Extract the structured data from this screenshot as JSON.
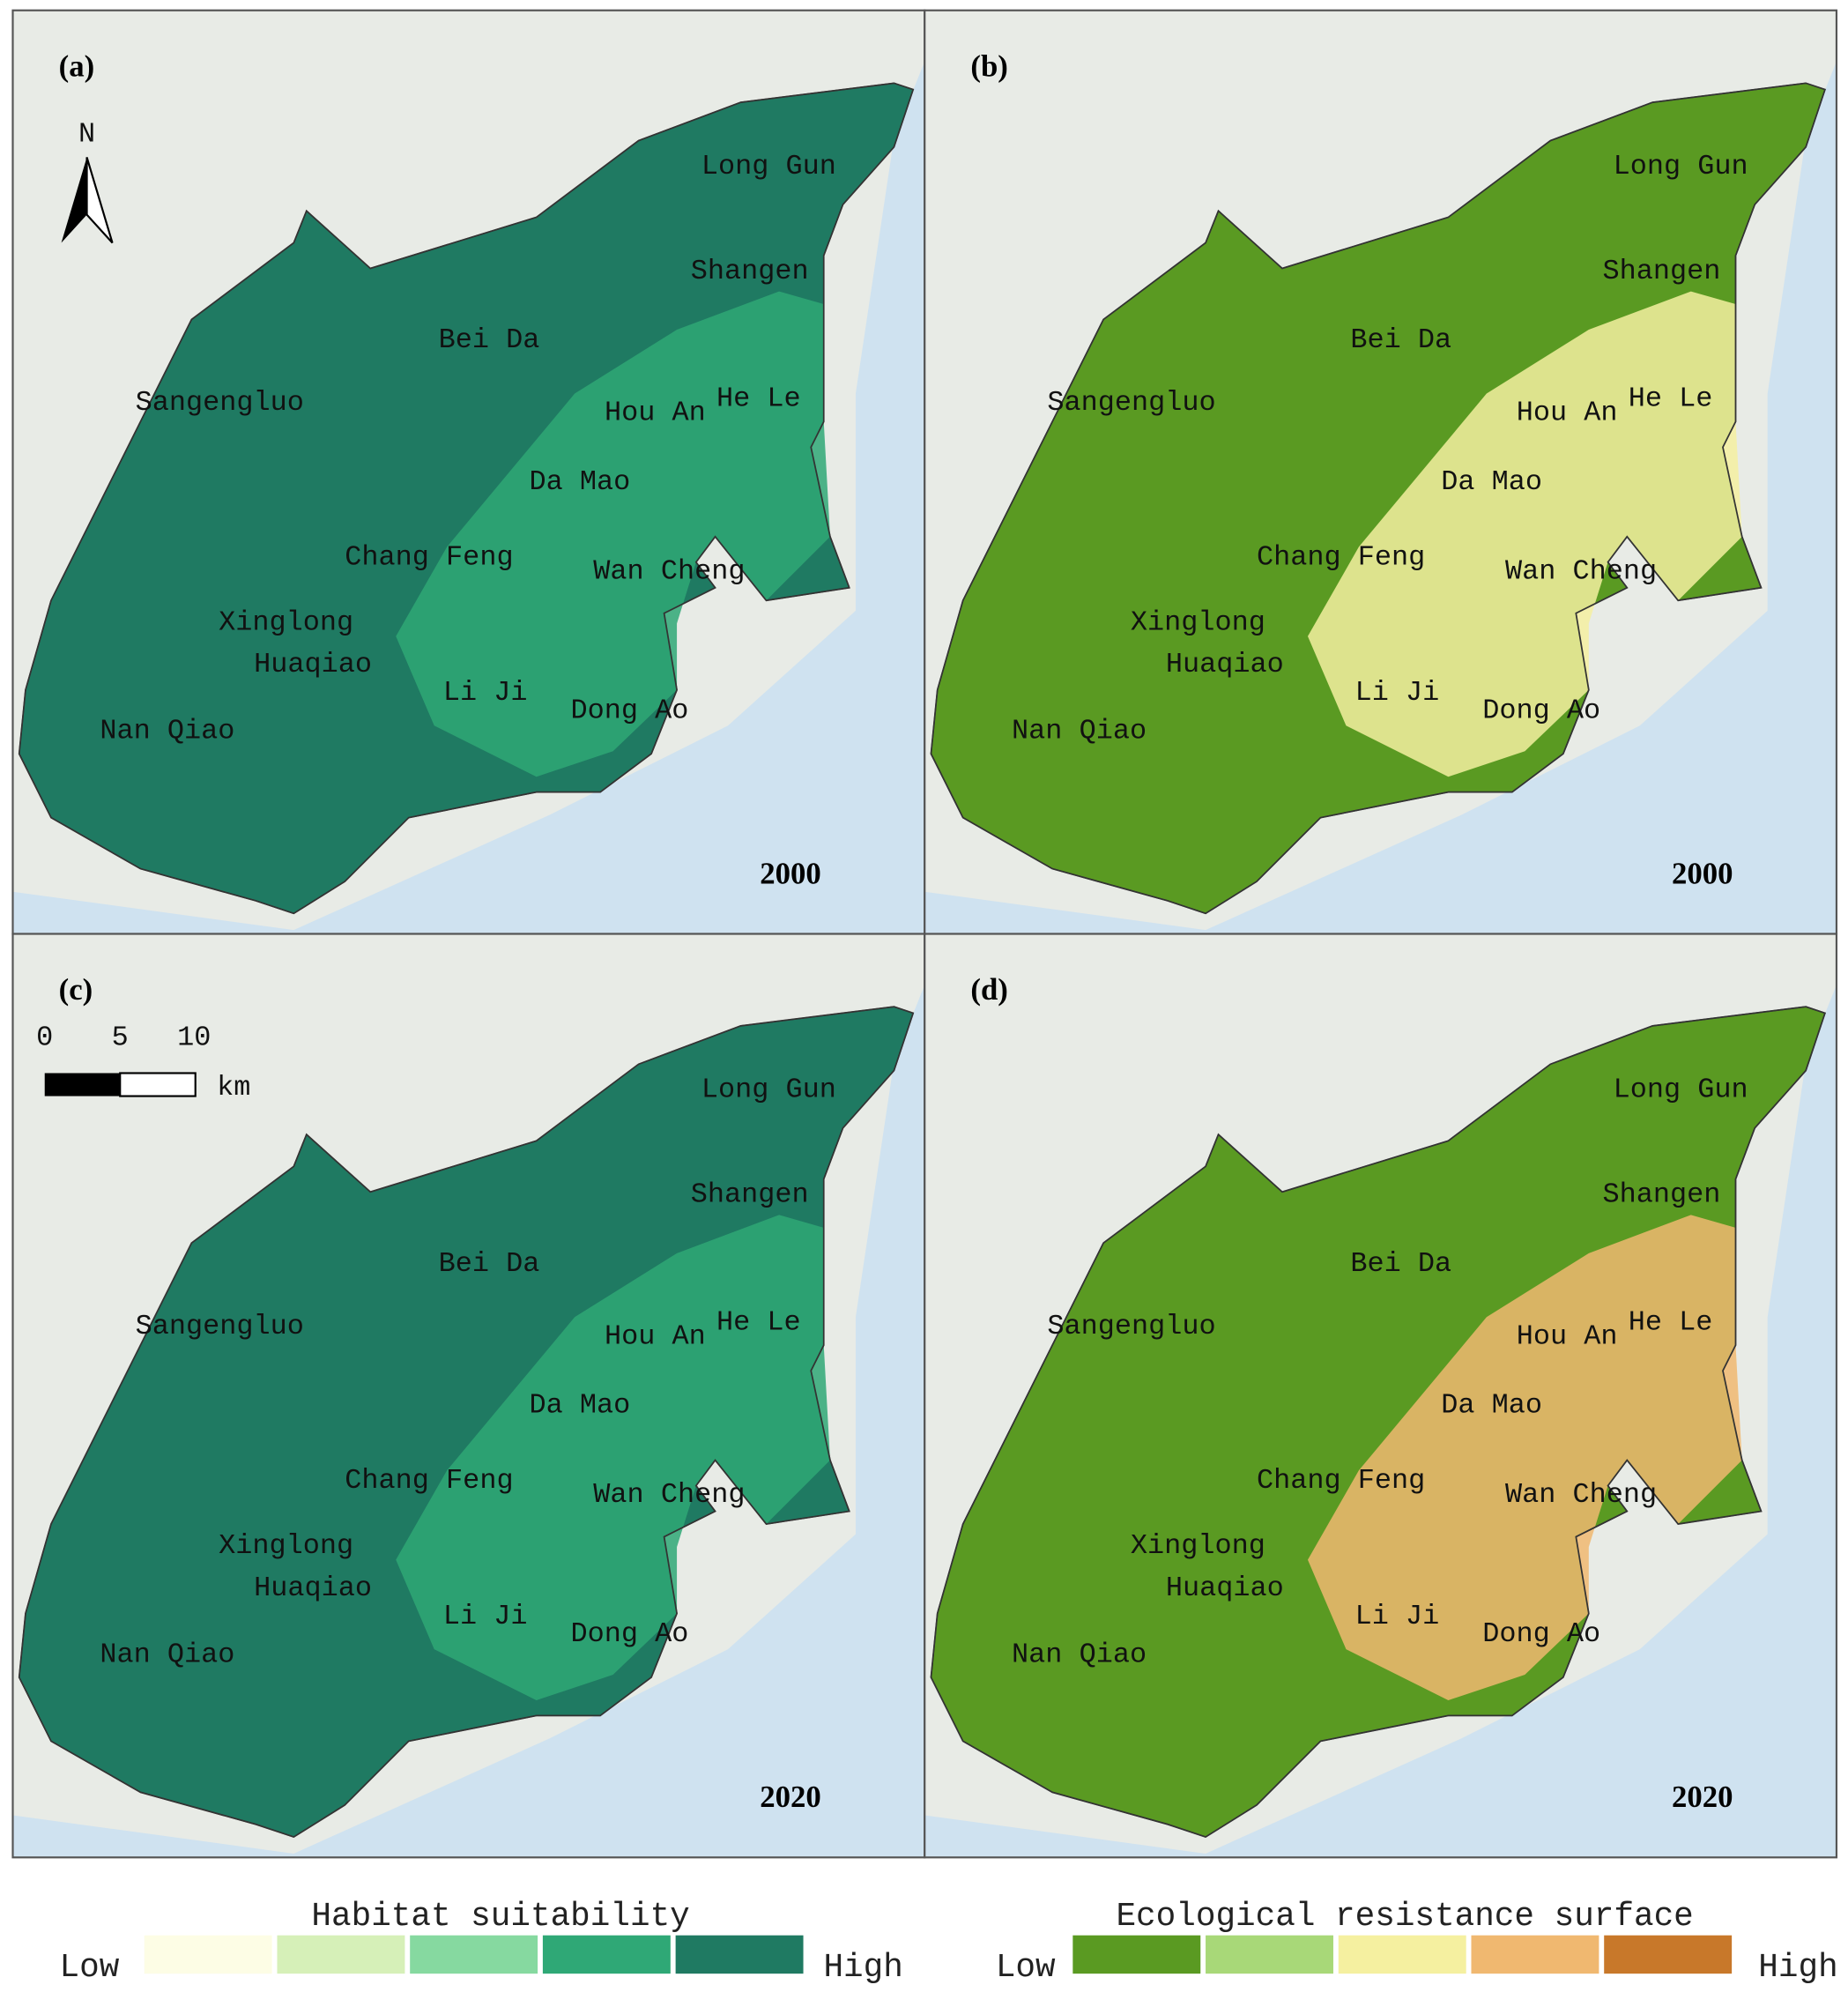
{
  "panels": [
    {
      "label": "(a)",
      "year": "2000"
    },
    {
      "label": "(b)",
      "year": "2000"
    },
    {
      "label": "(c)",
      "year": "2020"
    },
    {
      "label": "(d)",
      "year": "2020"
    }
  ],
  "regions": [
    "Long Gun",
    "Shangen",
    "Bei Da",
    "He Le",
    "Sangengluo",
    "Hou An",
    "Da Mao",
    "Chang Feng",
    "Wan Cheng",
    "Xinglong",
    "Huaqiao",
    "Li Ji",
    "Dong Ao",
    "Nan Qiao"
  ],
  "north_arrow": "N",
  "scale_bar": {
    "ticks": [
      "0",
      "5",
      "10"
    ],
    "unit": "km"
  },
  "legends": [
    {
      "title": "Habitat suitability",
      "low": "Low",
      "high": "High",
      "colors": [
        "#fdfde5",
        "#d6f0b8",
        "#86d9a0",
        "#2fa876",
        "#1f7a62"
      ]
    },
    {
      "title": "Ecological resistance surface",
      "low": "Low",
      "high": "High",
      "colors": [
        "#5a9a22",
        "#a8d878",
        "#f5f0a0",
        "#f0b870",
        "#c8782a"
      ]
    }
  ]
}
